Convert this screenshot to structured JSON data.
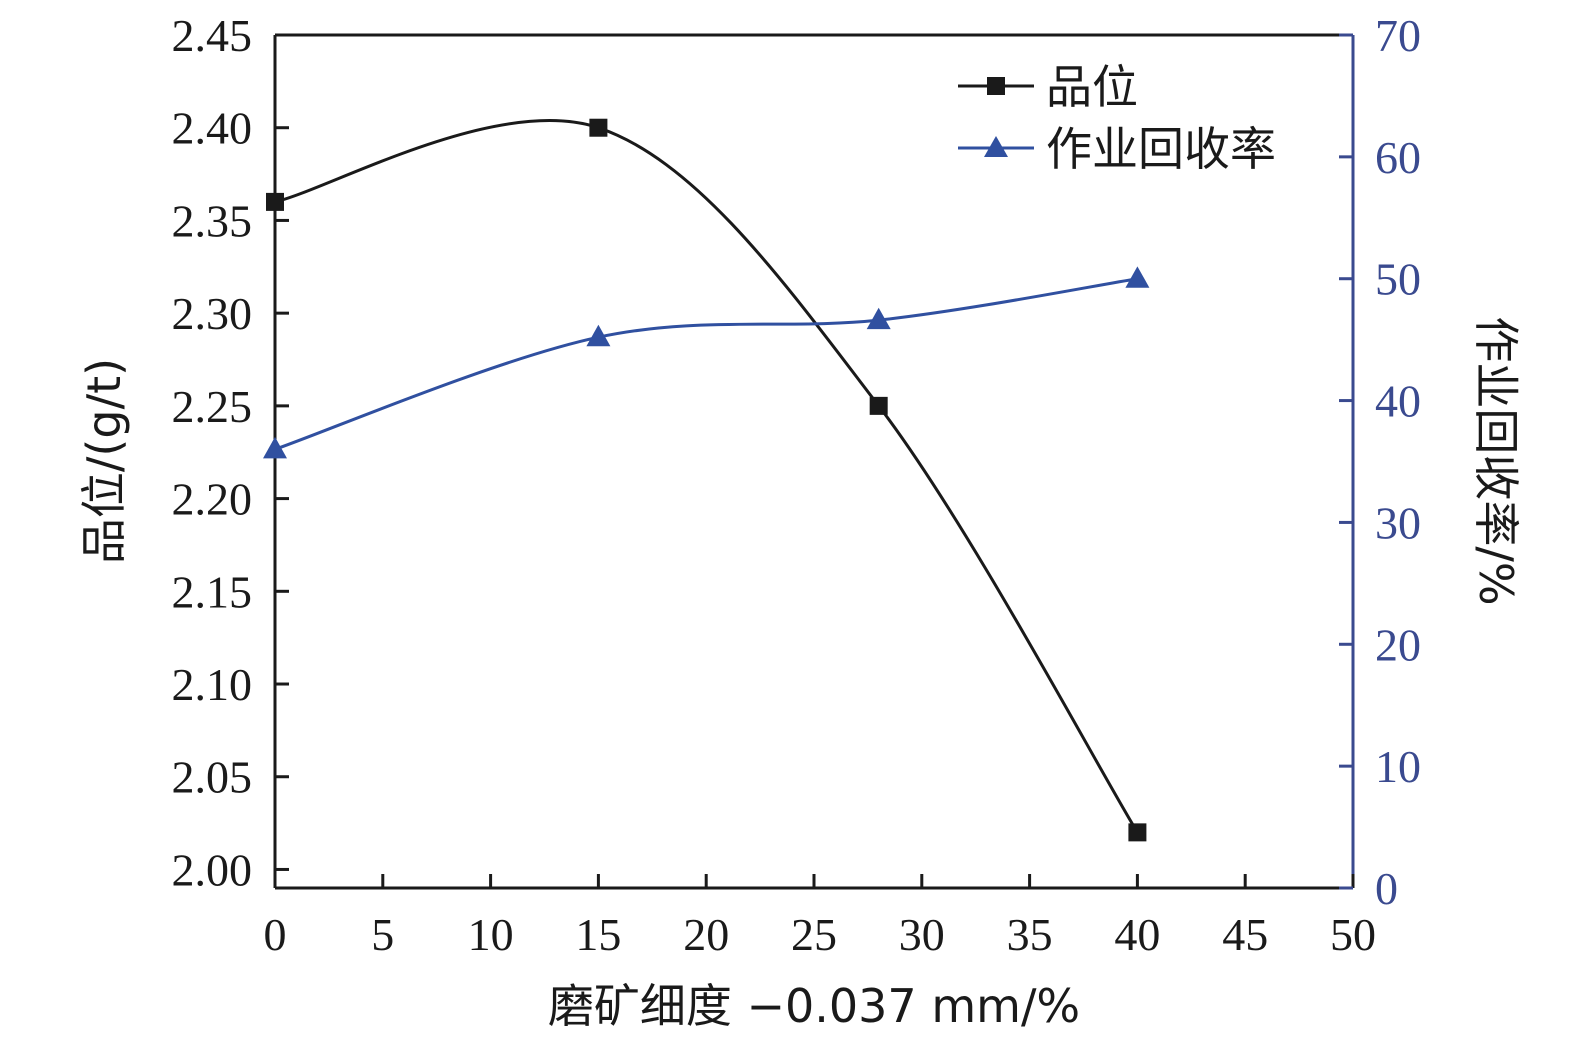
{
  "chart_data": {
    "type": "line",
    "xlabel": "磨矿细度 −0.037 mm/%",
    "ylabel_left": "品位/(g/t)",
    "ylabel_right": "作业回收率/%",
    "xlim": [
      0,
      50
    ],
    "ylim_left": [
      1.99,
      2.45
    ],
    "ylim_right": [
      0,
      70
    ],
    "x_ticks": [
      0,
      5,
      10,
      15,
      20,
      25,
      30,
      35,
      40,
      45,
      50
    ],
    "x_tick_labels": [
      "0",
      "5",
      "10",
      "15",
      "20",
      "25",
      "30",
      "35",
      "40",
      "45",
      "50"
    ],
    "y_left_ticks": [
      2.0,
      2.05,
      2.1,
      2.15,
      2.2,
      2.25,
      2.3,
      2.35,
      2.4,
      2.45
    ],
    "y_left_tick_labels": [
      "2.00",
      "2.05",
      "2.10",
      "2.15",
      "2.20",
      "2.25",
      "2.30",
      "2.35",
      "2.40",
      "2.45"
    ],
    "y_right_ticks": [
      0,
      10,
      20,
      30,
      40,
      50,
      60,
      70
    ],
    "y_right_tick_labels": [
      "0",
      "10",
      "20",
      "30",
      "40",
      "50",
      "60",
      "70"
    ],
    "legend_position": "top-right",
    "grid": false,
    "series": [
      {
        "name": "品位",
        "axis": "left",
        "marker": "square",
        "color": "#1a1a1a",
        "x": [
          0,
          15,
          28,
          40
        ],
        "values": [
          2.36,
          2.4,
          2.25,
          2.02
        ]
      },
      {
        "name": "作业回收率",
        "axis": "right",
        "marker": "triangle",
        "color": "#3050a0",
        "x": [
          0,
          15,
          28,
          40
        ],
        "values": [
          36.0,
          45.2,
          46.6,
          50.0
        ]
      }
    ],
    "colors": {
      "left_axis": "#1a1a1a",
      "right_axis": "#3a4a8f"
    }
  }
}
